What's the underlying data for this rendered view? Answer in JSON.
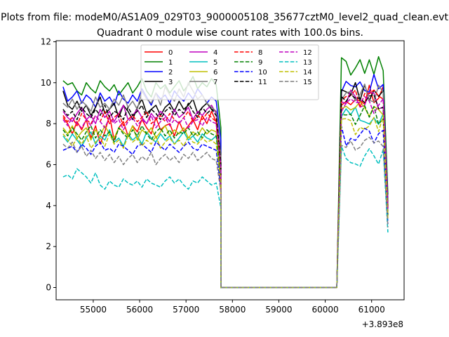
{
  "figure": {
    "suptitle": "Plots from file: modeM0/AS1A09_029T03_9000005108_35677cztM0_level2_quad_clean.evt",
    "offset_label": "+3.893e8"
  },
  "chart_data": {
    "type": "line",
    "title": "Quadrant 0 module wise count rates with 100.0s bins.",
    "xlabel": "",
    "ylabel": "",
    "x_offset": 389300000,
    "xlim": [
      54200,
      61700
    ],
    "ylim": [
      -0.6,
      12.05
    ],
    "xticks": [
      55000,
      56000,
      57000,
      58000,
      59000,
      60000,
      61000
    ],
    "xtick_labels": [
      "55000",
      "56000",
      "57000",
      "58000",
      "59000",
      "60000",
      "61000"
    ],
    "yticks": [
      0,
      2,
      4,
      6,
      8,
      10,
      12
    ],
    "ytick_labels": [
      "0",
      "2",
      "4",
      "6",
      "8",
      "10",
      "12"
    ],
    "grid": false,
    "legend": {
      "placement": "top-center",
      "columns": 4
    },
    "segments": [
      {
        "x_start": 54350,
        "x_step": 100,
        "count": 35
      },
      {
        "x_start": 57750,
        "x_step": 100,
        "count": 26
      },
      {
        "x_start": 60350,
        "x_step": 100,
        "count": 11
      }
    ],
    "series": [
      {
        "name": "0",
        "color": "#ff0000",
        "dash": "solid",
        "segment_levels": [
          8.0,
          0.0,
          9.4
        ],
        "first_segment_values": [
          8.3,
          8.0,
          7.5,
          8.1,
          7.7,
          8.2,
          7.3,
          7.9,
          7.0,
          7.6,
          8.4,
          7.2,
          7.8,
          8.1,
          7.4,
          7.9,
          7.6,
          8.2,
          7.8,
          7.5,
          8.3,
          7.7,
          7.9,
          8.0,
          7.4,
          8.1,
          7.6,
          7.9,
          8.2,
          7.7,
          8.4,
          8.0,
          8.6,
          8.1,
          4.6
        ]
      },
      {
        "name": "1",
        "color": "#008000",
        "dash": "solid",
        "segment_levels": [
          9.8,
          0.0,
          10.8
        ],
        "first_segment_values": [
          10.1,
          9.9,
          10.0,
          9.6,
          9.4,
          10.0,
          9.7,
          9.5,
          10.1,
          9.8,
          9.6,
          9.9,
          9.4,
          9.7,
          10.0,
          9.5,
          9.8,
          10.2,
          9.6,
          9.3,
          10.0,
          9.7,
          9.9,
          9.5,
          9.8,
          10.1,
          9.6,
          9.9,
          10.3,
          9.7,
          10.0,
          9.8,
          10.2,
          9.9,
          7.8
        ]
      },
      {
        "name": "2",
        "color": "#0000ff",
        "dash": "solid",
        "segment_levels": [
          9.2,
          0.0,
          10.0
        ],
        "first_segment_values": [
          9.8,
          9.1,
          9.3,
          9.6,
          9.0,
          9.4,
          9.2,
          8.8,
          9.5,
          9.1,
          9.3,
          8.9,
          9.6,
          9.2,
          9.0,
          9.4,
          9.1,
          9.7,
          9.3,
          8.9,
          9.5,
          9.2,
          9.4,
          9.0,
          9.6,
          9.3,
          9.1,
          9.5,
          9.2,
          9.7,
          9.4,
          9.0,
          9.3,
          9.1,
          7.2
        ]
      },
      {
        "name": "3",
        "color": "#000000",
        "dash": "solid",
        "segment_levels": [
          8.8,
          0.0,
          9.6
        ],
        "first_segment_values": [
          9.6,
          8.9,
          8.7,
          9.1,
          8.6,
          8.9,
          8.4,
          8.8,
          9.3,
          8.5,
          8.7,
          9.0,
          8.3,
          8.9,
          8.6,
          8.2,
          8.8,
          9.2,
          8.5,
          8.7,
          8.9,
          8.4,
          8.8,
          9.0,
          8.6,
          9.1,
          8.7,
          8.9,
          9.2,
          8.5,
          8.8,
          9.0,
          8.7,
          8.6,
          6.5
        ]
      },
      {
        "name": "4",
        "color": "#bf00bf",
        "dash": "solid",
        "segment_levels": [
          8.4,
          0.0,
          9.2
        ],
        "first_segment_values": [
          8.6,
          8.3,
          8.1,
          8.5,
          8.8,
          8.2,
          8.4,
          8.0,
          8.7,
          8.3,
          8.6,
          8.1,
          8.5,
          8.9,
          8.2,
          8.4,
          8.7,
          8.3,
          8.0,
          8.5,
          8.2,
          8.6,
          8.4,
          8.1,
          8.7,
          8.3,
          8.5,
          8.8,
          8.2,
          8.6,
          8.4,
          8.7,
          8.9,
          8.5,
          6.2
        ]
      },
      {
        "name": "5",
        "color": "#00bfbf",
        "dash": "solid",
        "segment_levels": [
          7.3,
          0.0,
          8.4
        ],
        "first_segment_values": [
          7.4,
          7.1,
          7.5,
          7.2,
          6.9,
          7.3,
          7.6,
          7.0,
          7.4,
          7.2,
          7.7,
          7.1,
          7.3,
          6.9,
          7.5,
          7.2,
          7.4,
          7.0,
          7.6,
          7.3,
          7.1,
          7.5,
          7.2,
          7.4,
          7.0,
          7.3,
          7.6,
          7.2,
          7.4,
          7.1,
          7.5,
          7.3,
          7.2,
          7.4,
          5.3
        ]
      },
      {
        "name": "6",
        "color": "#bfbf00",
        "dash": "solid",
        "segment_levels": [
          7.6,
          0.0,
          8.6
        ],
        "first_segment_values": [
          7.8,
          7.5,
          7.9,
          7.3,
          7.6,
          7.8,
          7.2,
          7.7,
          7.4,
          7.9,
          7.5,
          7.3,
          7.8,
          7.6,
          7.4,
          7.9,
          7.2,
          7.7,
          7.5,
          7.8,
          7.3,
          7.6,
          7.9,
          7.4,
          7.7,
          7.5,
          7.8,
          7.3,
          7.6,
          7.4,
          7.8,
          7.5,
          7.7,
          7.6,
          5.6
        ]
      },
      {
        "name": "7",
        "color": "#7f7f7f",
        "dash": "solid",
        "segment_levels": [
          8.9,
          0.0,
          9.5
        ],
        "first_segment_values": [
          9.0,
          8.8,
          9.2,
          8.7,
          9.1,
          8.9,
          8.6,
          9.3,
          8.8,
          9.0,
          8.7,
          9.2,
          8.9,
          9.4,
          8.8,
          9.1,
          8.7,
          9.6,
          9.2,
          9.0,
          9.5,
          8.9,
          9.8,
          9.4,
          9.1,
          9.7,
          9.3,
          10.0,
          9.6,
          9.2,
          9.4,
          9.0,
          8.8,
          8.6,
          6.4
        ]
      },
      {
        "name": "8",
        "color": "#ff0000",
        "dash": "dashed",
        "segment_levels": [
          8.2,
          0.0,
          9.3
        ],
        "first_segment_values": [
          8.4,
          8.1,
          8.3,
          7.9,
          8.5,
          8.2,
          8.0,
          8.4,
          8.1,
          8.6,
          8.0,
          8.3,
          8.5,
          7.9,
          8.2,
          8.4,
          8.1,
          8.3,
          8.6,
          8.0,
          8.2,
          8.4,
          8.1,
          8.5,
          8.2,
          8.0,
          8.3,
          8.6,
          8.1,
          8.4,
          8.2,
          8.5,
          8.3,
          8.1,
          5.9
        ]
      },
      {
        "name": "9",
        "color": "#008000",
        "dash": "dashed",
        "segment_levels": [
          7.6,
          0.0,
          8.4
        ],
        "first_segment_values": [
          7.7,
          7.4,
          7.8,
          7.5,
          7.2,
          7.6,
          7.9,
          7.3,
          7.7,
          7.4,
          7.6,
          7.1,
          7.8,
          7.5,
          7.3,
          7.7,
          7.4,
          7.9,
          7.5,
          7.2,
          7.6,
          7.8,
          7.4,
          7.7,
          7.3,
          7.6,
          7.5,
          7.8,
          7.4,
          7.6,
          7.3,
          7.7,
          7.5,
          7.4,
          5.4
        ]
      },
      {
        "name": "10",
        "color": "#0000ff",
        "dash": "dashed",
        "segment_levels": [
          6.9,
          0.0,
          7.4
        ],
        "first_segment_values": [
          6.7,
          6.8,
          6.9,
          6.6,
          7.0,
          6.8,
          6.5,
          6.9,
          7.1,
          6.7,
          6.8,
          6.6,
          7.0,
          6.9,
          6.7,
          6.5,
          6.9,
          7.0,
          6.8,
          6.6,
          7.1,
          6.9,
          6.7,
          7.0,
          6.8,
          6.6,
          6.9,
          7.1,
          6.8,
          6.7,
          7.0,
          6.9,
          6.8,
          6.7,
          4.9
        ]
      },
      {
        "name": "11",
        "color": "#000000",
        "dash": "dashed",
        "segment_levels": [
          8.5,
          0.0,
          9.0
        ],
        "first_segment_values": [
          8.7,
          8.4,
          8.6,
          8.2,
          8.8,
          8.5,
          8.3,
          8.7,
          8.4,
          8.9,
          8.3,
          8.6,
          8.5,
          8.2,
          8.8,
          8.4,
          8.6,
          8.9,
          8.3,
          8.7,
          8.5,
          8.2,
          8.6,
          8.8,
          8.4,
          8.7,
          8.5,
          9.0,
          8.6,
          8.3,
          8.8,
          8.5,
          8.7,
          8.4,
          6.1
        ]
      },
      {
        "name": "12",
        "color": "#bf00bf",
        "dash": "dashed",
        "segment_levels": [
          8.1,
          0.0,
          8.9
        ],
        "first_segment_values": [
          8.2,
          7.9,
          8.3,
          8.0,
          7.8,
          8.2,
          7.9,
          8.4,
          8.1,
          7.8,
          8.3,
          8.0,
          8.2,
          7.7,
          8.1,
          8.3,
          7.9,
          8.2,
          8.0,
          8.4,
          7.8,
          8.1,
          8.3,
          7.9,
          8.2,
          8.0,
          8.3,
          7.8,
          8.1,
          8.2,
          7.9,
          8.3,
          8.1,
          8.0,
          5.8
        ]
      },
      {
        "name": "13",
        "color": "#00bfbf",
        "dash": "dashed",
        "segment_levels": [
          5.2,
          0.0,
          6.4
        ],
        "first_segment_values": [
          5.4,
          5.5,
          5.3,
          5.8,
          5.6,
          5.4,
          5.1,
          5.6,
          5.0,
          4.8,
          5.2,
          5.0,
          4.9,
          5.3,
          5.1,
          5.0,
          5.2,
          4.9,
          5.3,
          5.1,
          5.0,
          4.9,
          5.2,
          5.4,
          5.1,
          5.3,
          5.0,
          4.8,
          5.2,
          5.1,
          5.4,
          5.2,
          5.0,
          5.1,
          3.9
        ]
      },
      {
        "name": "14",
        "color": "#bfbf00",
        "dash": "dashed",
        "segment_levels": [
          7.2,
          0.0,
          7.9
        ],
        "first_segment_values": [
          7.5,
          7.2,
          6.9,
          7.3,
          7.0,
          7.4,
          6.8,
          7.1,
          7.3,
          6.9,
          7.5,
          7.0,
          7.2,
          6.8,
          7.4,
          7.1,
          7.3,
          6.9,
          7.2,
          7.0,
          7.4,
          6.8,
          7.1,
          7.3,
          7.0,
          7.2,
          6.9,
          7.4,
          7.1,
          7.0,
          7.3,
          7.1,
          7.2,
          7.0,
          5.2
        ]
      },
      {
        "name": "15",
        "color": "#7f7f7f",
        "dash": "dashed",
        "segment_levels": [
          6.5,
          0.0,
          7.0
        ],
        "first_segment_values": [
          7.0,
          6.8,
          7.1,
          6.6,
          6.9,
          6.4,
          6.7,
          6.3,
          6.6,
          6.2,
          6.5,
          6.1,
          6.4,
          6.0,
          6.3,
          6.5,
          6.1,
          6.4,
          6.2,
          6.6,
          6.0,
          6.3,
          6.5,
          6.2,
          6.4,
          6.1,
          6.5,
          6.3,
          6.6,
          6.2,
          6.4,
          6.6,
          6.3,
          6.2,
          4.7
        ]
      }
    ]
  }
}
